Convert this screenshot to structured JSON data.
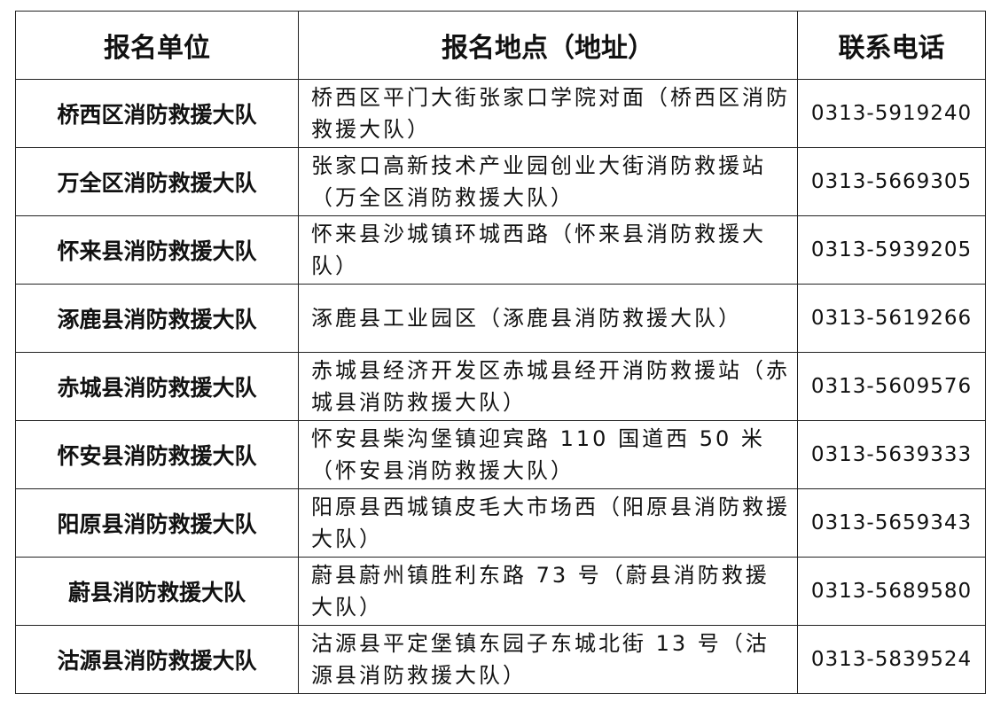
{
  "headers": [
    "报名单位",
    "报名地点（地址）",
    "联系电话"
  ],
  "rows": [
    {
      "unit": "桥西区消防救援大队",
      "address": "桥西区平门大街张家口学院对面（桥西区消防救援大队）",
      "phone": "0313-5919240"
    },
    {
      "unit": "万全区消防救援大队",
      "address": "张家口高新技术产业园创业大街消防救援站（万全区消防救援大队）",
      "phone": "0313-5669305"
    },
    {
      "unit": "怀来县消防救援大队",
      "address": "怀来县沙城镇环城西路（怀来县消防救援大队）",
      "phone": "0313-5939205"
    },
    {
      "unit": "涿鹿县消防救援大队",
      "address": "涿鹿县工业园区（涿鹿县消防救援大队）",
      "phone": "0313-5619266"
    },
    {
      "unit": "赤城县消防救援大队",
      "address": "赤城县经济开发区赤城县经开消防救援站（赤城县消防救援大队）",
      "phone": "0313-5609576"
    },
    {
      "unit": "怀安县消防救援大队",
      "address": "怀安县柴沟堡镇迎宾路 110 国道西 50 米（怀安县消防救援大队）",
      "phone": "0313-5639333"
    },
    {
      "unit": "阳原县消防救援大队",
      "address": "阳原县西城镇皮毛大市场西（阳原县消防救援大队）",
      "phone": "0313-5659343"
    },
    {
      "unit": "蔚县消防救援大队",
      "address": "蔚县蔚州镇胜利东路 73 号（蔚县消防救援大队）",
      "phone": "0313-5689580"
    },
    {
      "unit": "沽源县消防救援大队",
      "address": "沽源县平定堡镇东园子东城北街 13 号（沽源县消防救援大队）",
      "phone": "0313-5839524"
    }
  ]
}
